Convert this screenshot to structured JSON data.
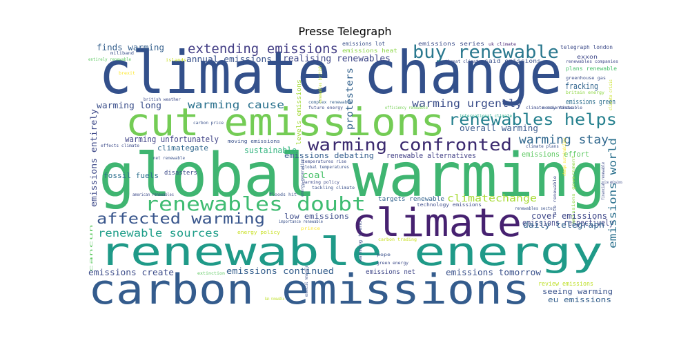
{
  "title": "Presse Telegraph",
  "words": [
    {
      "text": "climate change",
      "color": "#33508b"
    },
    {
      "text": "global warming",
      "color": "#3fb571"
    },
    {
      "text": "renewable energy",
      "color": "#1f9a88"
    },
    {
      "text": "carbon emissions",
      "color": "#345c8d"
    },
    {
      "text": "cut emissions",
      "color": "#74cc55"
    },
    {
      "text": "climate",
      "color": "#462170"
    },
    {
      "text": "renewables doubt",
      "color": "#3fbc72"
    },
    {
      "text": "warming confronted",
      "color": "#3b2a6f"
    },
    {
      "text": "buy renewable",
      "color": "#2a788e"
    },
    {
      "text": "renewables helps",
      "color": "#25808e"
    },
    {
      "text": "extending emissions",
      "color": "#433e85"
    },
    {
      "text": "affected warming",
      "color": "#39568c"
    },
    {
      "text": "warming stay",
      "color": "#31688e"
    },
    {
      "text": "renewable sources",
      "color": "#1f9e89"
    },
    {
      "text": "warming cause",
      "color": "#2c728e"
    },
    {
      "text": "warming urgently",
      "color": "#3c4f8a"
    },
    {
      "text": "climatechange",
      "color": "#a8db34"
    },
    {
      "text": "emissions world",
      "color": "#2c718e"
    },
    {
      "text": "emissions entirely",
      "color": "#3e4989"
    },
    {
      "text": "protesters",
      "color": "#33628d"
    },
    {
      "text": "realising renewables",
      "color": "#3f4788"
    },
    {
      "text": "annual emissions",
      "color": "#3a548c"
    },
    {
      "text": "finds warming",
      "color": "#35608d"
    },
    {
      "text": "emissions lot",
      "color": "#3b528b"
    },
    {
      "text": "warming long",
      "color": "#3c508b"
    },
    {
      "text": "overall warming",
      "color": "#38598c"
    },
    {
      "text": "fracking",
      "color": "#32658e"
    },
    {
      "text": "plans renewable",
      "color": "#4ac16d"
    },
    {
      "text": "emissions green",
      "color": "#2e6f8e"
    },
    {
      "text": "warming unfortunately",
      "color": "#414487"
    },
    {
      "text": "climategate",
      "color": "#31688e"
    },
    {
      "text": "sustainable",
      "color": "#2eb37c"
    },
    {
      "text": "renewable alternatives",
      "color": "#424086"
    },
    {
      "text": "emissions effort",
      "color": "#5ec962"
    },
    {
      "text": "coal",
      "color": "#4cc26c"
    },
    {
      "text": "low emissions",
      "color": "#3e4c8a"
    },
    {
      "text": "daily telegraph",
      "color": "#33628d"
    },
    {
      "text": "cover emissions",
      "color": "#3f4889"
    },
    {
      "text": "emissions respectively",
      "color": "#404588"
    },
    {
      "text": "emissions create",
      "color": "#3d4d8a"
    },
    {
      "text": "emissions continued",
      "color": "#355f8d"
    },
    {
      "text": "emissions net",
      "color": "#3f4788"
    },
    {
      "text": "emissions tomorrow",
      "color": "#3b528b"
    },
    {
      "text": "review emissions",
      "color": "#bddf26"
    },
    {
      "text": "seeing warming",
      "color": "#3a548c"
    },
    {
      "text": "eu emissions",
      "color": "#35608d"
    },
    {
      "text": "emissions debating",
      "color": "#355e8d"
    },
    {
      "text": "targets renewable",
      "color": "#33638d"
    },
    {
      "text": "fossil fuels",
      "color": "#2d708e"
    },
    {
      "text": "disasters",
      "color": "#3e4c8a"
    },
    {
      "text": "moving emissions",
      "color": "#3b528b"
    },
    {
      "text": "levels emissions",
      "color": "#a2da37"
    },
    {
      "text": "emissions series",
      "color": "#3d4e8a"
    },
    {
      "text": "emissions heat",
      "color": "#8bd646"
    },
    {
      "text": "telegraph london",
      "color": "#3e4c8a"
    },
    {
      "text": "exxon",
      "color": "#3f4889"
    },
    {
      "text": "said emissions",
      "color": "#3b528b"
    },
    {
      "text": "threat climate",
      "color": "#3e4c8a"
    },
    {
      "text": "uk climate",
      "color": "#482475"
    },
    {
      "text": "renewables companies",
      "color": "#3f4889"
    },
    {
      "text": "greenhouse gas",
      "color": "#3d4e8a"
    },
    {
      "text": "britain energy",
      "color": "#8fd744"
    },
    {
      "text": "miliband",
      "color": "#3b528b"
    },
    {
      "text": "islands",
      "color": "#c8e020"
    },
    {
      "text": "entirely renewable",
      "color": "#5ec962"
    },
    {
      "text": "brexit",
      "color": "#fde725"
    },
    {
      "text": "british weather",
      "color": "#3e4c8a"
    },
    {
      "text": "carbon price",
      "color": "#3b528b"
    },
    {
      "text": "complex renewable",
      "color": "#35608d"
    },
    {
      "text": "future energy",
      "color": "#3e4c8a"
    },
    {
      "text": "efficiency renewable",
      "color": "#75d054"
    },
    {
      "text": "international climate",
      "color": "#22a884"
    },
    {
      "text": "money renewable",
      "color": "#3b528b"
    },
    {
      "text": "climate scientists",
      "color": "#3e4c8a"
    },
    {
      "text": "climate plans",
      "color": "#3b528b"
    },
    {
      "text": "effects climate",
      "color": "#3e4c8a"
    },
    {
      "text": "net renewable",
      "color": "#3b528b"
    },
    {
      "text": "temperatures rise",
      "color": "#3e4c8a"
    },
    {
      "text": "global temperatures",
      "color": "#3b528b"
    },
    {
      "text": "warming policy",
      "color": "#3e4c8a"
    },
    {
      "text": "tackling climate",
      "color": "#3b528b"
    },
    {
      "text": "american renewables",
      "color": "#3e4c8a"
    },
    {
      "text": "floods hit",
      "color": "#3b528b"
    },
    {
      "text": "technology emissions",
      "color": "#3e4c8a"
    },
    {
      "text": "renewables sector",
      "color": "#3b528b"
    },
    {
      "text": "rate renewable",
      "color": "#3e4c8a"
    },
    {
      "text": "importance renewable",
      "color": "#3b528b"
    },
    {
      "text": "energy policy",
      "color": "#c8e020"
    },
    {
      "text": "prince",
      "color": "#fde725"
    },
    {
      "text": "warming trend",
      "color": "#3e4c8a"
    },
    {
      "text": "carbon trading",
      "color": "#c8e020"
    },
    {
      "text": "pope",
      "color": "#3b528b"
    },
    {
      "text": "green energy",
      "color": "#3e4c8a"
    },
    {
      "text": "extinction",
      "color": "#5ec962"
    },
    {
      "text": "cancun",
      "color": "#5ec962"
    },
    {
      "text": "emissions government",
      "color": "#8fd744"
    },
    {
      "text": "change sustainability",
      "color": "#fde725"
    },
    {
      "text": "renewables british",
      "color": "#bddf26"
    },
    {
      "text": "energy generation",
      "color": "#3b528b"
    },
    {
      "text": "financial renewable",
      "color": "#3e4c8a"
    },
    {
      "text": "essential renewable",
      "color": "#3b528b"
    },
    {
      "text": "climate crisis",
      "color": "#c8e020"
    },
    {
      "text": "ban renewable",
      "color": "#bddf26"
    },
    {
      "text": "price emissions",
      "color": "#3e4c8a"
    }
  ]
}
